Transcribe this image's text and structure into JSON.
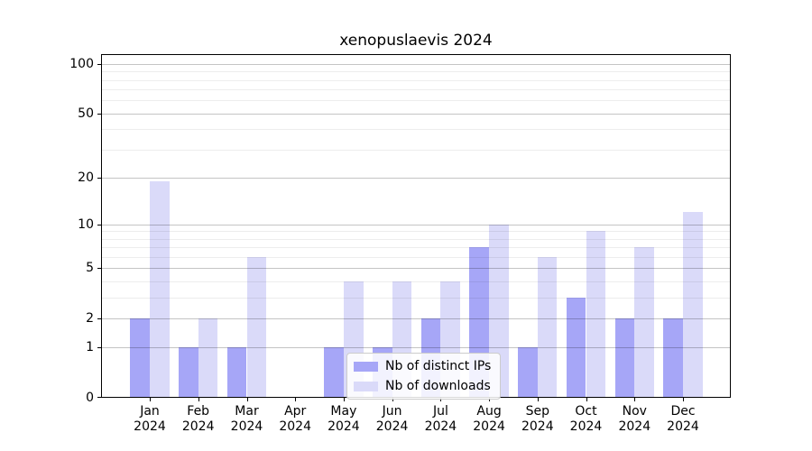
{
  "chart_data": {
    "type": "bar",
    "title": "xenopuslaevis 2024",
    "categories": [
      "Jan 2024",
      "Feb 2024",
      "Mar 2024",
      "Apr 2024",
      "May 2024",
      "Jun 2024",
      "Jul 2024",
      "Aug 2024",
      "Sep 2024",
      "Oct 2024",
      "Nov 2024",
      "Dec 2024"
    ],
    "series": [
      {
        "name": "Nb of distinct IPs",
        "color": "#a6a6f7",
        "values": [
          2,
          1,
          1,
          0,
          1,
          1,
          2,
          7,
          1,
          3,
          2,
          2
        ]
      },
      {
        "name": "Nb of downloads",
        "color": "#dadaf9",
        "values": [
          19,
          2,
          6,
          0,
          4,
          4,
          4,
          10,
          6,
          9,
          7,
          12
        ]
      }
    ],
    "yscale": "log1p",
    "ylim": [
      0,
      115
    ],
    "y_major_ticks": [
      100,
      50,
      20,
      10,
      5,
      2,
      1,
      0
    ],
    "y_minor_gridlines": [
      3,
      4,
      6,
      7,
      8,
      9,
      30,
      40,
      60,
      70,
      80,
      90
    ],
    "grid": true,
    "legend_position": "lower center",
    "xlabel": "",
    "ylabel": ""
  },
  "colors": {
    "background": "#ffffff",
    "bar_distinct_ips": "#a6a6f7",
    "bar_downloads": "#dadaf9",
    "grid_major": "#c4c4c4",
    "grid_minor": "#ededed",
    "spine": "#000000",
    "legend_border": "#cccccc",
    "text": "#000000"
  }
}
